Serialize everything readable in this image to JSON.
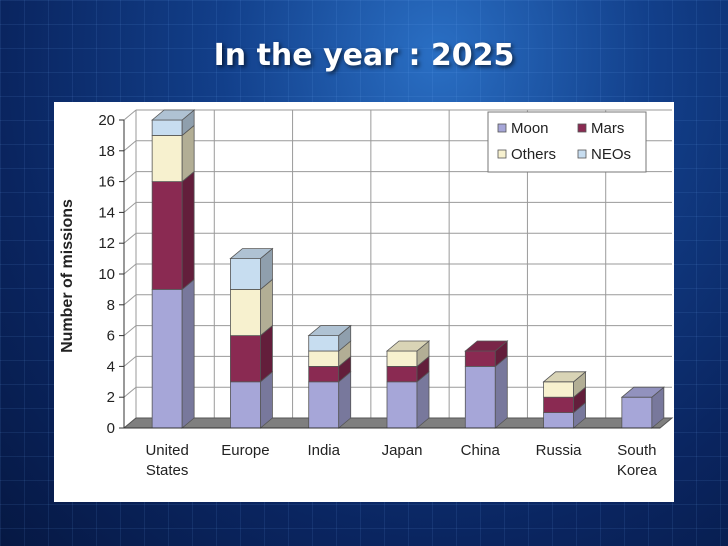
{
  "slide": {
    "title": "In the year : 2025"
  },
  "chart_data": {
    "type": "bar",
    "stacked": true,
    "categories": [
      "United States",
      "Europe",
      "India",
      "Japan",
      "China",
      "Russia",
      "South Korea"
    ],
    "category_lines": [
      [
        "United",
        "States"
      ],
      [
        "Europe"
      ],
      [
        "India"
      ],
      [
        "Japan"
      ],
      [
        "China"
      ],
      [
        "Russia"
      ],
      [
        "South",
        "Korea"
      ]
    ],
    "series": [
      {
        "name": "Moon",
        "values": [
          9,
          3,
          3,
          3,
          4,
          1,
          2
        ],
        "color": "#a6a6d8"
      },
      {
        "name": "Mars",
        "values": [
          7,
          3,
          1,
          1,
          1,
          1,
          0
        ],
        "color": "#8a2a52"
      },
      {
        "name": "Others",
        "values": [
          3,
          3,
          1,
          1,
          0,
          1,
          0
        ],
        "color": "#f7f1cf"
      },
      {
        "name": "NEOs",
        "values": [
          1,
          2,
          1,
          0,
          0,
          0,
          0
        ],
        "color": "#c7ddf0"
      }
    ],
    "ylabel": "Number of missions",
    "ylim": [
      0,
      20
    ],
    "yticks": [
      0,
      2,
      4,
      6,
      8,
      10,
      12,
      14,
      16,
      18,
      20
    ],
    "grid": true,
    "legend_position": "top-right"
  }
}
